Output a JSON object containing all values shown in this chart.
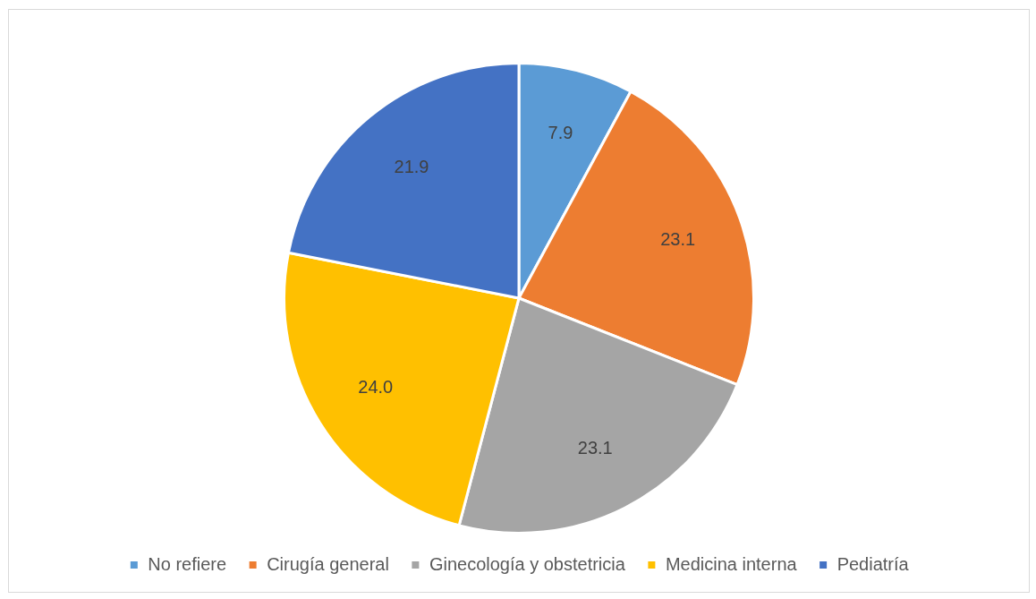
{
  "chart_data": {
    "type": "pie",
    "categories": [
      "No refiere",
      "Cirugía general",
      "Ginecología y obstetricia",
      "Medicina interna",
      "Pediatría"
    ],
    "values": [
      7.9,
      23.1,
      23.1,
      24.0,
      21.9
    ],
    "colors": [
      "#5b9bd5",
      "#ed7d31",
      "#a5a5a5",
      "#ffc000",
      "#4472c4"
    ],
    "value_labels": [
      "7.9",
      "23.1",
      "23.1",
      "24.0",
      "21.9"
    ],
    "legend": "bottom"
  }
}
